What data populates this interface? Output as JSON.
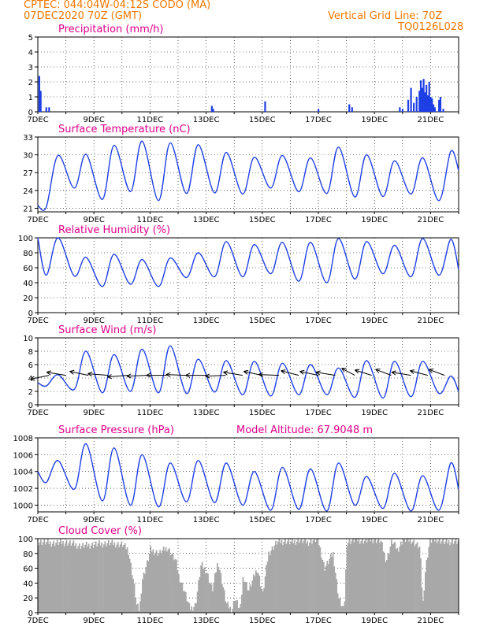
{
  "header": {
    "line1": "CPTEC:   044:04W-04:12S   CODO (MA)",
    "line2": "07DEC2020 70Z (GMT)",
    "right1": "Vertical Grid Line: 70Z",
    "right2": "TQ0126L028"
  },
  "colors": {
    "header": "#f07800",
    "title": "#e0008a",
    "series": "#1f3fe6",
    "cloud": "#a8a8a8",
    "arrow": "#000000"
  },
  "x_tick_labels": [
    "7DEC",
    "9DEC",
    "11DEC",
    "13DEC",
    "15DEC",
    "17DEC",
    "19DEC",
    "21DEC"
  ],
  "chart_data": [
    {
      "id": "precip",
      "type": "bar",
      "title": "Precipitation (mm/h)",
      "ylim": [
        0,
        5
      ],
      "yticks": [
        0,
        1,
        2,
        3,
        4,
        5
      ],
      "xlim_days": [
        7,
        22
      ],
      "points": [
        [
          7.05,
          2.4
        ],
        [
          7.1,
          1.4
        ],
        [
          7.3,
          0.3
        ],
        [
          7.4,
          0.3
        ],
        [
          13.2,
          0.4
        ],
        [
          13.25,
          0.2
        ],
        [
          15.1,
          0.7
        ],
        [
          17.0,
          0.2
        ],
        [
          18.1,
          0.5
        ],
        [
          18.2,
          0.3
        ],
        [
          19.9,
          0.3
        ],
        [
          20.0,
          0.2
        ],
        [
          20.2,
          0.8
        ],
        [
          20.3,
          1.6
        ],
        [
          20.4,
          0.6
        ],
        [
          20.5,
          1.0
        ],
        [
          20.6,
          1.4
        ],
        [
          20.65,
          2.1
        ],
        [
          20.7,
          1.6
        ],
        [
          20.75,
          2.2
        ],
        [
          20.8,
          1.3
        ],
        [
          20.85,
          1.8
        ],
        [
          20.9,
          1.1
        ],
        [
          20.95,
          2.0
        ],
        [
          21.0,
          1.0
        ],
        [
          21.05,
          0.9
        ],
        [
          21.1,
          0.5
        ],
        [
          21.15,
          0.3
        ],
        [
          21.3,
          0.8
        ],
        [
          21.35,
          1.0
        ],
        [
          21.45,
          0.2
        ]
      ]
    },
    {
      "id": "temp",
      "type": "line",
      "title": "Surface Temperature (nC)",
      "ylim": [
        20.4,
        33
      ],
      "yticks": [
        21,
        24,
        27,
        30,
        33
      ],
      "daily_max": [
        29.9,
        30.1,
        31.6,
        32.3,
        32.0,
        31.7,
        30.4,
        29.6,
        29.9,
        29.5,
        31.3,
        30.0,
        29.0,
        29.5,
        30.6
      ],
      "daily_min": [
        21.2,
        24.4,
        22.5,
        23.8,
        22.3,
        23.5,
        23.6,
        23.4,
        24.4,
        23.8,
        23.5,
        22.9,
        23.0,
        23.4,
        22.3
      ],
      "start_value": 21.5,
      "end_value": 27.4
    },
    {
      "id": "rh",
      "type": "line",
      "title": "Relative Humidity (%)",
      "ylim": [
        0,
        100
      ],
      "yticks": [
        0,
        20,
        40,
        60,
        80,
        100
      ],
      "daily_max": [
        100,
        74,
        78,
        71,
        73,
        80,
        95,
        91,
        94,
        94,
        99,
        95,
        90,
        99,
        98
      ],
      "daily_min": [
        50,
        49,
        35,
        38,
        35,
        47,
        48,
        48,
        52,
        42,
        40,
        45,
        52,
        48,
        50
      ],
      "start_value": 100,
      "end_value": 58
    },
    {
      "id": "wind",
      "type": "line",
      "title": "Surface Wind (m/s)",
      "ylim": [
        0,
        10
      ],
      "yticks": [
        0,
        2,
        4,
        6,
        8,
        10
      ],
      "daily_max": [
        4.5,
        8.0,
        7.5,
        8.3,
        8.8,
        6.8,
        6.6,
        6.5,
        6.2,
        6.0,
        5.5,
        6.6,
        6.5,
        6.5,
        4.3
      ],
      "daily_min": [
        2.8,
        2.3,
        1.8,
        2.0,
        1.8,
        1.7,
        1.9,
        1.5,
        1.3,
        1.5,
        1.5,
        1.1,
        1.0,
        1.2,
        1.7
      ],
      "start_value": 3.3,
      "end_value": 2.0,
      "vector_times_days": [
        7.4,
        8.0,
        8.8,
        9.5,
        10.2,
        10.9,
        11.6,
        12.3,
        13.0,
        13.7,
        14.3,
        15.0,
        15.6,
        16.3,
        17.0,
        17.6,
        18.3,
        18.9,
        19.6,
        20.3,
        20.9,
        21.5
      ],
      "vector_angles_deg": [
        155,
        200,
        205,
        190,
        170,
        175,
        180,
        185,
        180,
        175,
        200,
        205,
        185,
        210,
        205,
        200,
        230,
        215,
        220,
        200,
        210,
        220
      ]
    },
    {
      "id": "pressure",
      "type": "line",
      "title": "Surface Pressure (hPa)",
      "annotation": "Model Altitude: 67.9048 m",
      "ylim": [
        999.2,
        1008
      ],
      "yticks": [
        1000,
        1002,
        1004,
        1006,
        1008
      ],
      "daily_max": [
        1005.3,
        1007.3,
        1006.8,
        1006.0,
        1005.0,
        1005.3,
        1005.0,
        1004.0,
        1004.5,
        1004.3,
        1005.0,
        1003.4,
        1003.8,
        1003.5,
        1005.0
      ],
      "daily_min": [
        1002.7,
        1001.9,
        1000.5,
        1000.0,
        999.8,
        1000.4,
        1000.3,
        1000.0,
        999.4,
        999.5,
        999.3,
        1000.0,
        999.6,
        999.3,
        999.4
      ],
      "start_value": 1004.0,
      "end_value": 1001.9
    },
    {
      "id": "cloud",
      "type": "area",
      "title": "Cloud Cover (%)",
      "ylim": [
        0,
        100
      ],
      "yticks": [
        0,
        20,
        40,
        60,
        80,
        100
      ],
      "hourly_profile": [
        [
          7.0,
          96
        ],
        [
          7.5,
          94
        ],
        [
          8.0,
          95
        ],
        [
          8.5,
          90
        ],
        [
          9.0,
          92
        ],
        [
          9.5,
          94
        ],
        [
          10.0,
          92
        ],
        [
          10.2,
          85
        ],
        [
          10.4,
          40
        ],
        [
          10.5,
          10
        ],
        [
          10.6,
          3
        ],
        [
          10.7,
          45
        ],
        [
          10.9,
          70
        ],
        [
          11.0,
          85
        ],
        [
          11.3,
          80
        ],
        [
          11.6,
          88
        ],
        [
          11.9,
          70
        ],
        [
          12.0,
          50
        ],
        [
          12.2,
          30
        ],
        [
          12.4,
          5
        ],
        [
          12.6,
          10
        ],
        [
          12.8,
          65
        ],
        [
          13.0,
          55
        ],
        [
          13.2,
          30
        ],
        [
          13.4,
          70
        ],
        [
          13.7,
          12
        ],
        [
          13.9,
          3
        ],
        [
          14.0,
          20
        ],
        [
          14.2,
          3
        ],
        [
          14.3,
          50
        ],
        [
          14.5,
          30
        ],
        [
          14.8,
          60
        ],
        [
          15.0,
          25
        ],
        [
          15.2,
          80
        ],
        [
          15.5,
          95
        ],
        [
          15.8,
          97
        ],
        [
          16.0,
          95
        ],
        [
          16.3,
          98
        ],
        [
          16.6,
          95
        ],
        [
          16.9,
          99
        ],
        [
          17.0,
          93
        ],
        [
          17.2,
          60
        ],
        [
          17.5,
          80
        ],
        [
          17.7,
          20
        ],
        [
          17.9,
          2
        ],
        [
          18.0,
          95
        ],
        [
          18.3,
          99
        ],
        [
          18.6,
          97
        ],
        [
          18.9,
          99
        ],
        [
          19.2,
          97
        ],
        [
          19.4,
          70
        ],
        [
          19.6,
          97
        ],
        [
          19.8,
          85
        ],
        [
          20.0,
          99
        ],
        [
          20.3,
          98
        ],
        [
          20.6,
          88
        ],
        [
          20.7,
          10
        ],
        [
          20.8,
          60
        ],
        [
          20.95,
          97
        ],
        [
          21.2,
          99
        ],
        [
          21.5,
          95
        ],
        [
          21.8,
          97
        ],
        [
          22.0,
          95
        ]
      ]
    }
  ]
}
